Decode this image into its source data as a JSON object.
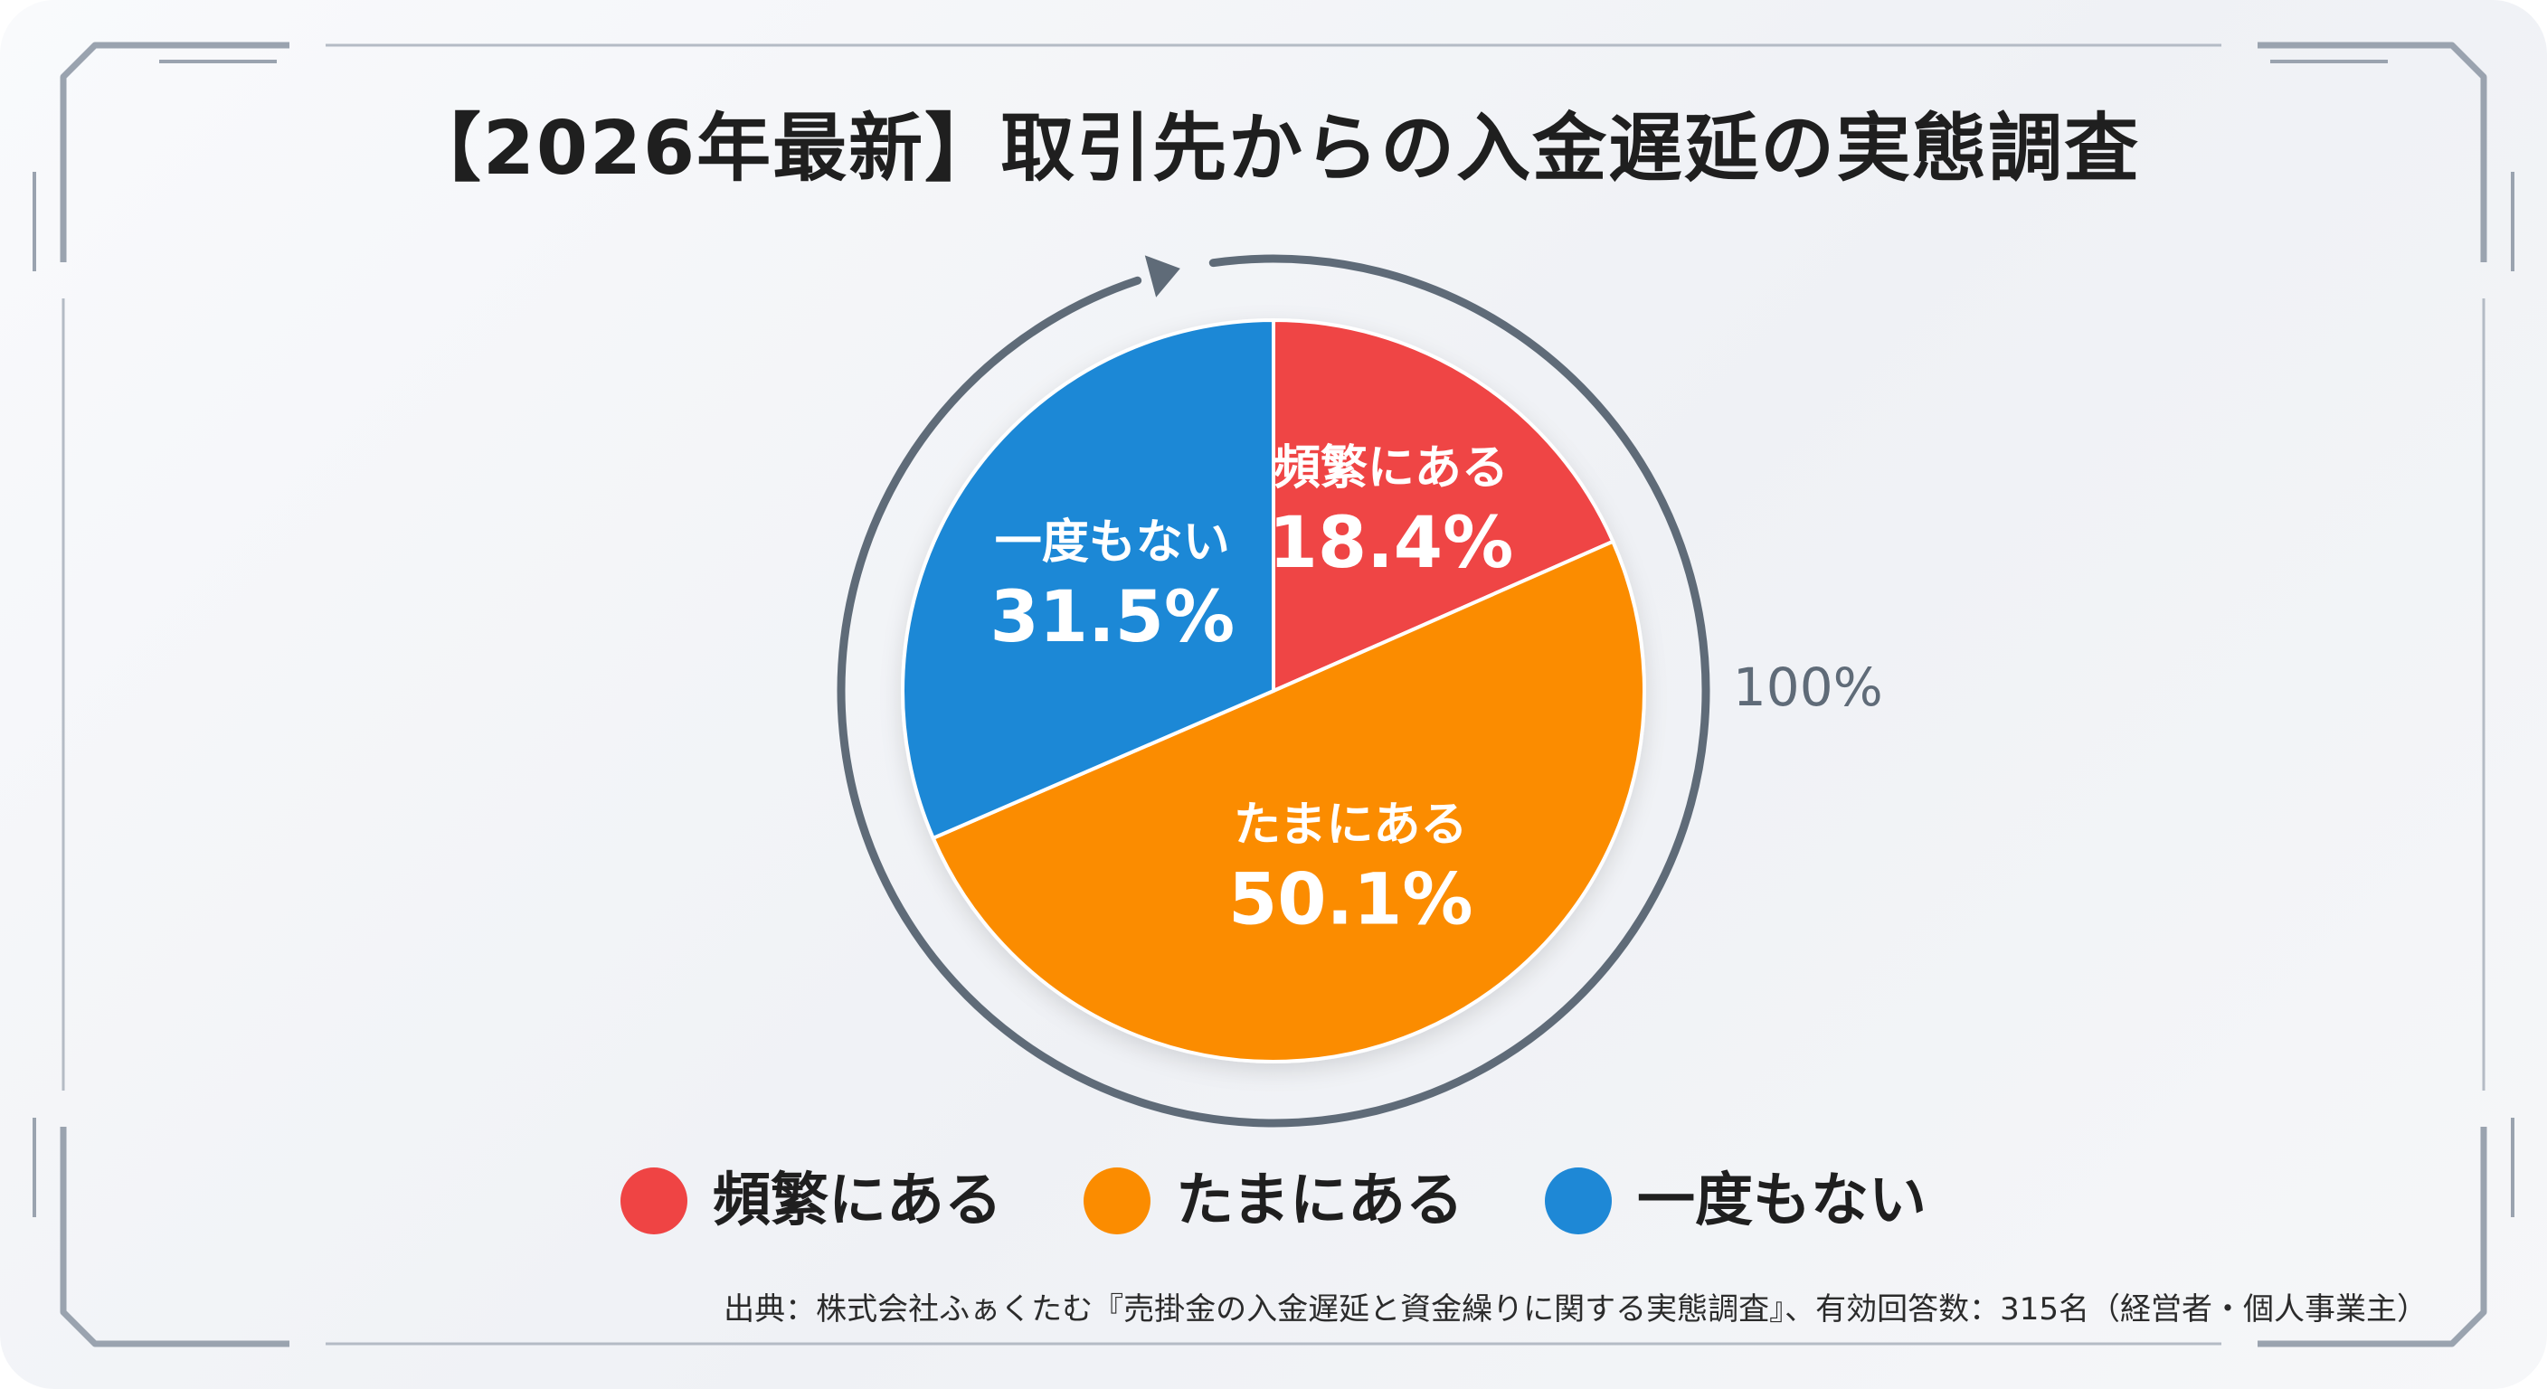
{
  "title": "【2026年最新】取引先からの入金遅延の実態調査",
  "chart_data": {
    "type": "pie",
    "title": "【2026年最新】取引先からの入金遅延の実態調査",
    "start": "12 o'clock",
    "direction": "clockwise",
    "total_label": "100%",
    "slices": [
      {
        "label": "頻繁にある",
        "value": 18.4,
        "display": "18.4%",
        "color": "#ef4444"
      },
      {
        "label": "たまにある",
        "value": 50.1,
        "display": "50.1%",
        "color": "#fb8c00"
      },
      {
        "label": "一度もない",
        "value": 31.5,
        "display": "31.5%",
        "color": "#1e88d6"
      }
    ],
    "legend_placement": "bottom"
  },
  "legend": {
    "items": [
      {
        "label": "頻繁にある",
        "color": "#ef4444"
      },
      {
        "label": "たまにある",
        "color": "#fb8c00"
      },
      {
        "label": "一度もない",
        "color": "#1e88d6"
      }
    ]
  },
  "source": "出典：株式会社ふぁくたむ『売掛金の入金遅延と資金繰りに関する実態調査』、有効回答数：315名（経営者・個人事業主）",
  "colors": {
    "frame": "#9aa3af",
    "arc": "#5f6b78",
    "title": "#1f1f1f"
  }
}
